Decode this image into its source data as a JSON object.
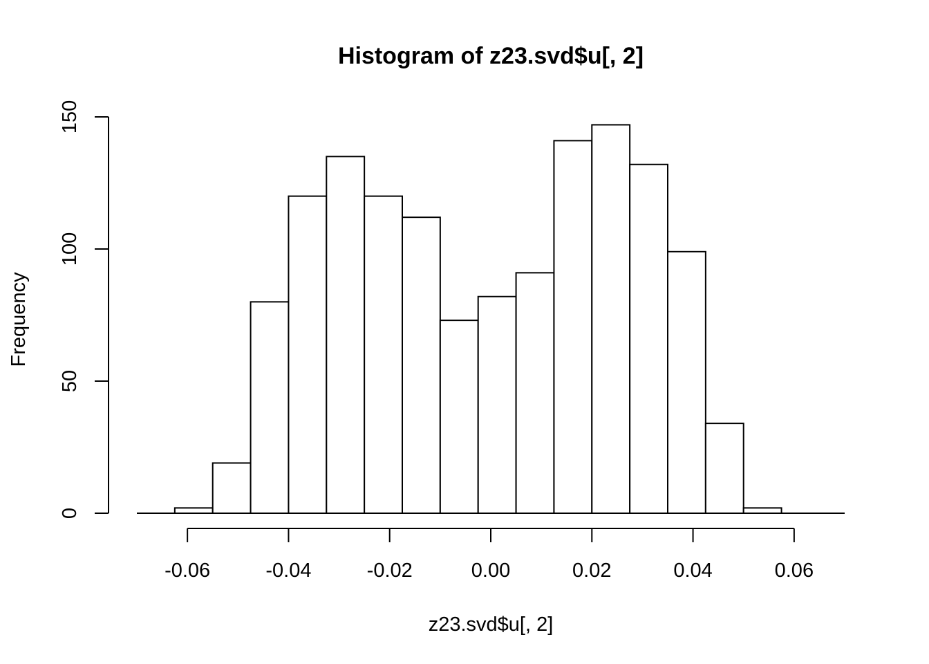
{
  "chart_data": {
    "type": "bar",
    "title": "Histogram of z23.svd$u[, 2]",
    "xlabel": "z23.svd$u[, 2]",
    "ylabel": "Frequency",
    "bin_edges": [
      -0.0625,
      -0.055,
      -0.0475,
      -0.04,
      -0.0325,
      -0.025,
      -0.0175,
      -0.01,
      -0.0025,
      0.005,
      0.0125,
      0.02,
      0.0275,
      0.035,
      0.0425,
      0.05,
      0.0575
    ],
    "values": [
      2,
      19,
      80,
      120,
      135,
      120,
      112,
      73,
      82,
      91,
      141,
      147,
      132,
      99,
      34,
      2
    ],
    "x_ticks": [
      -0.06,
      -0.04,
      -0.02,
      0.0,
      0.02,
      0.04,
      0.06
    ],
    "x_tick_labels": [
      "-0.06",
      "-0.04",
      "-0.02",
      "0.00",
      "0.02",
      "0.04",
      "0.06"
    ],
    "y_ticks": [
      0,
      50,
      100,
      150
    ],
    "y_tick_labels": [
      "0",
      "50",
      "100",
      "150"
    ],
    "xlim": [
      -0.07,
      0.07
    ],
    "ylim": [
      0,
      150
    ],
    "grid": false,
    "legend": "none"
  }
}
